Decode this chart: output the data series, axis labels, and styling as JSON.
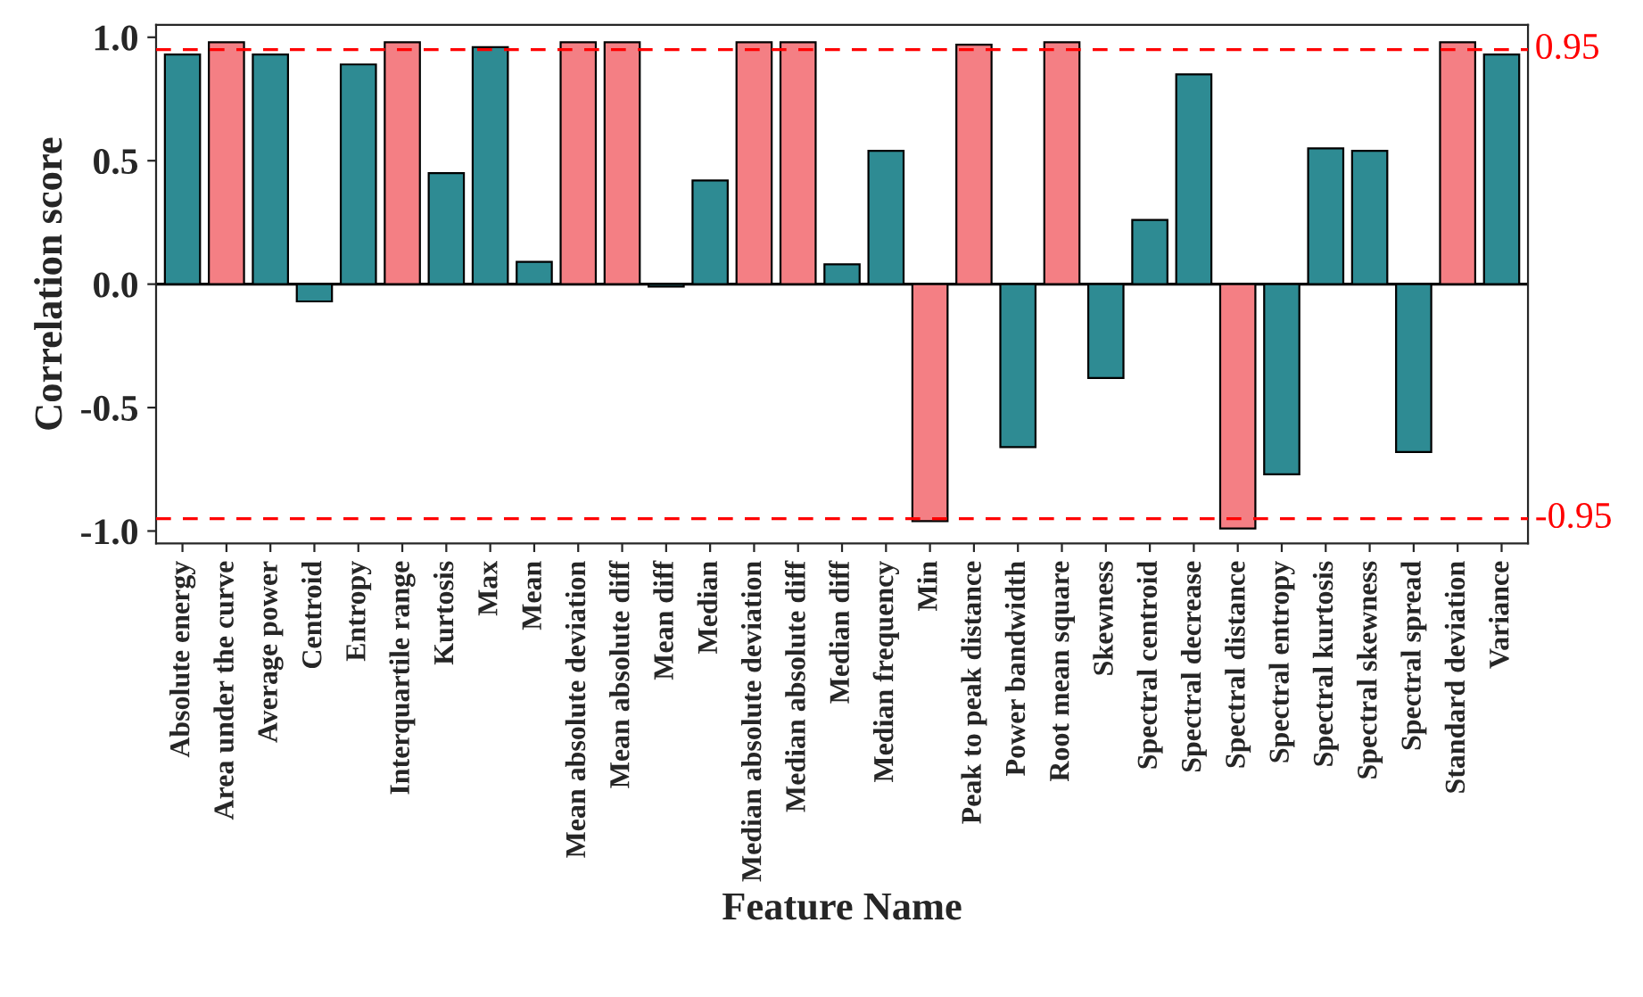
{
  "chart_data": {
    "type": "bar",
    "xlabel": "Feature Name",
    "ylabel": "Correlation score",
    "categories": [
      "Absolute energy",
      "Area under the curve",
      "Average power",
      "Centroid",
      "Entropy",
      "Interquartile range",
      "Kurtosis",
      "Max",
      "Mean",
      "Mean absolute deviation",
      "Mean absolute diff",
      "Mean diff",
      "Median",
      "Median absolute deviation",
      "Median absolute diff",
      "Median diff",
      "Median frequency",
      "Min",
      "Peak to peak distance",
      "Power bandwidth",
      "Root mean square",
      "Skewness",
      "Spectral centroid",
      "Spectral decrease",
      "Spectral distance",
      "Spectral entropy",
      "Spectral kurtosis",
      "Spectral skewness",
      "Spectral spread",
      "Standard deviation",
      "Variance"
    ],
    "values": [
      0.93,
      0.98,
      0.93,
      -0.07,
      0.89,
      0.98,
      0.45,
      0.96,
      0.09,
      0.98,
      0.98,
      -0.01,
      0.42,
      0.98,
      0.98,
      0.08,
      0.54,
      -0.96,
      0.97,
      -0.66,
      0.98,
      -0.38,
      0.26,
      0.85,
      -0.99,
      -0.77,
      0.55,
      0.54,
      -0.68,
      0.98,
      0.93
    ],
    "colors": [
      "#2e8b93",
      "#f47f84",
      "#2e8b93",
      "#2e8b93",
      "#2e8b93",
      "#f47f84",
      "#2e8b93",
      "#2e8b93",
      "#2e8b93",
      "#f47f84",
      "#f47f84",
      "#2e8b93",
      "#2e8b93",
      "#f47f84",
      "#f47f84",
      "#2e8b93",
      "#2e8b93",
      "#f47f84",
      "#f47f84",
      "#2e8b93",
      "#f47f84",
      "#2e8b93",
      "#2e8b93",
      "#2e8b93",
      "#f47f84",
      "#2e8b93",
      "#2e8b93",
      "#2e8b93",
      "#2e8b93",
      "#f47f84",
      "#2e8b93"
    ],
    "ylim": [
      -1.05,
      1.05
    ],
    "yticks": [
      {
        "value": -1.0,
        "label": "-1.0"
      },
      {
        "value": -0.5,
        "label": "-0.5"
      },
      {
        "value": 0.0,
        "label": "0.0"
      },
      {
        "value": 0.5,
        "label": "0.5"
      },
      {
        "value": 1.0,
        "label": "1.0"
      }
    ],
    "ref_lines": [
      {
        "axis": "y",
        "value": 0.95,
        "label": "0.95",
        "color": "#ff0000",
        "line_style": "dashed"
      },
      {
        "axis": "y",
        "value": -0.95,
        "label": "-0.95",
        "color": "#ff0000",
        "line_style": "dashed"
      },
      {
        "axis": "y",
        "value": 0,
        "color": "#000000",
        "line_style": "solid"
      }
    ],
    "grid": false,
    "legend": false
  }
}
